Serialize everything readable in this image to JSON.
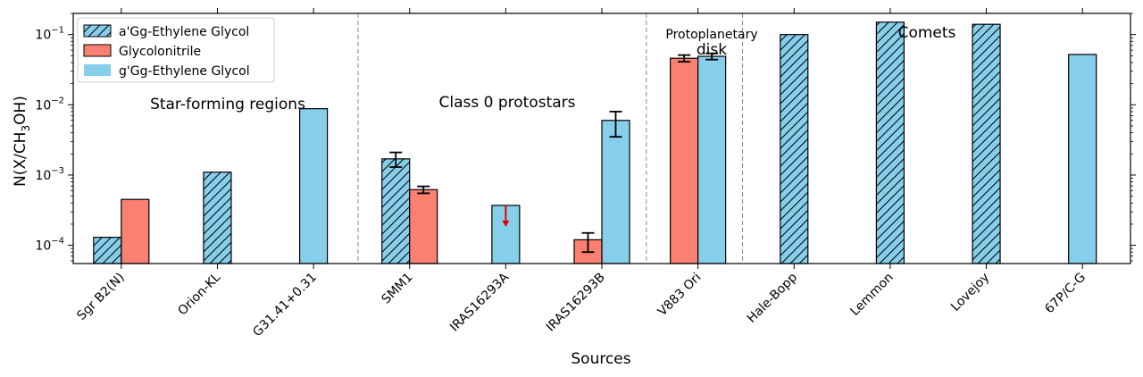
{
  "chart_data": {
    "type": "bar",
    "title": "",
    "xlabel": "Sources",
    "ylabel": "N(X/CH3OH)",
    "yscale": "log",
    "ylim": [
      5.5e-05,
      0.2
    ],
    "yticks": [
      {
        "value": 0.0001,
        "base": "10",
        "exp": "−4"
      },
      {
        "value": 0.001,
        "base": "10",
        "exp": "−3"
      },
      {
        "value": 0.01,
        "base": "10",
        "exp": "−2"
      },
      {
        "value": 0.1,
        "base": "10",
        "exp": "−1"
      }
    ],
    "categories": [
      "Sgr B2(N)",
      "Orion-KL",
      "G31.41+0.31",
      "SMM1",
      "IRAS16293A",
      "IRAS16293B",
      "V883 Ori",
      "Hale-Bopp",
      "Lemmon",
      "Lovejoy",
      "67P/C-G"
    ],
    "series": [
      {
        "name": "a'Gg-Ethylene Glycol",
        "color": "#87CEEB",
        "hatch": true,
        "values": [
          0.00013,
          0.0011,
          null,
          0.0017,
          null,
          null,
          null,
          0.1,
          0.15,
          0.14,
          null
        ],
        "err_low": [
          null,
          null,
          null,
          0.0004,
          null,
          null,
          null,
          null,
          null,
          null,
          null
        ],
        "err_high": [
          null,
          null,
          null,
          0.0004,
          null,
          null,
          null,
          null,
          null,
          null,
          null
        ]
      },
      {
        "name": "Glycolonitrile",
        "color": "#FA8072",
        "hatch": false,
        "values": [
          0.00045,
          null,
          null,
          0.00062,
          null,
          0.00012,
          0.046,
          null,
          null,
          null,
          null
        ],
        "err_low": [
          null,
          null,
          null,
          7e-05,
          null,
          4e-05,
          0.005,
          null,
          null,
          null,
          null
        ],
        "err_high": [
          null,
          null,
          null,
          7e-05,
          null,
          3e-05,
          0.005,
          null,
          null,
          null,
          null
        ]
      },
      {
        "name": "g'Gg-Ethylene Glycol",
        "color": "#87CEEB",
        "hatch": false,
        "values": [
          null,
          null,
          0.0088,
          null,
          0.00037,
          0.006,
          0.049,
          null,
          null,
          null,
          0.052
        ],
        "err_low": [
          null,
          null,
          null,
          null,
          null,
          0.0025,
          0.005,
          null,
          null,
          null,
          null
        ],
        "err_high": [
          null,
          null,
          null,
          null,
          null,
          0.002,
          0.005,
          null,
          null,
          null,
          null
        ],
        "upper_limit": [
          false,
          false,
          false,
          false,
          true,
          false,
          false,
          false,
          false,
          false,
          false
        ]
      }
    ],
    "groups": [
      {
        "label": "Star-forming regions",
        "lines": [
          "Star-forming regions"
        ]
      },
      {
        "label": "Class 0 protostars",
        "lines": [
          "Class 0 protostars"
        ]
      },
      {
        "label": "Protoplanetary disk",
        "lines": [
          "Protoplanetary",
          "disk"
        ]
      },
      {
        "label": "Comets",
        "lines": [
          "Comets"
        ]
      }
    ],
    "legend_position": "top-left",
    "colors": {
      "blue": "#87CEEB",
      "red": "#FA8072",
      "arrow": "#e00000",
      "divider": "#888888"
    }
  }
}
